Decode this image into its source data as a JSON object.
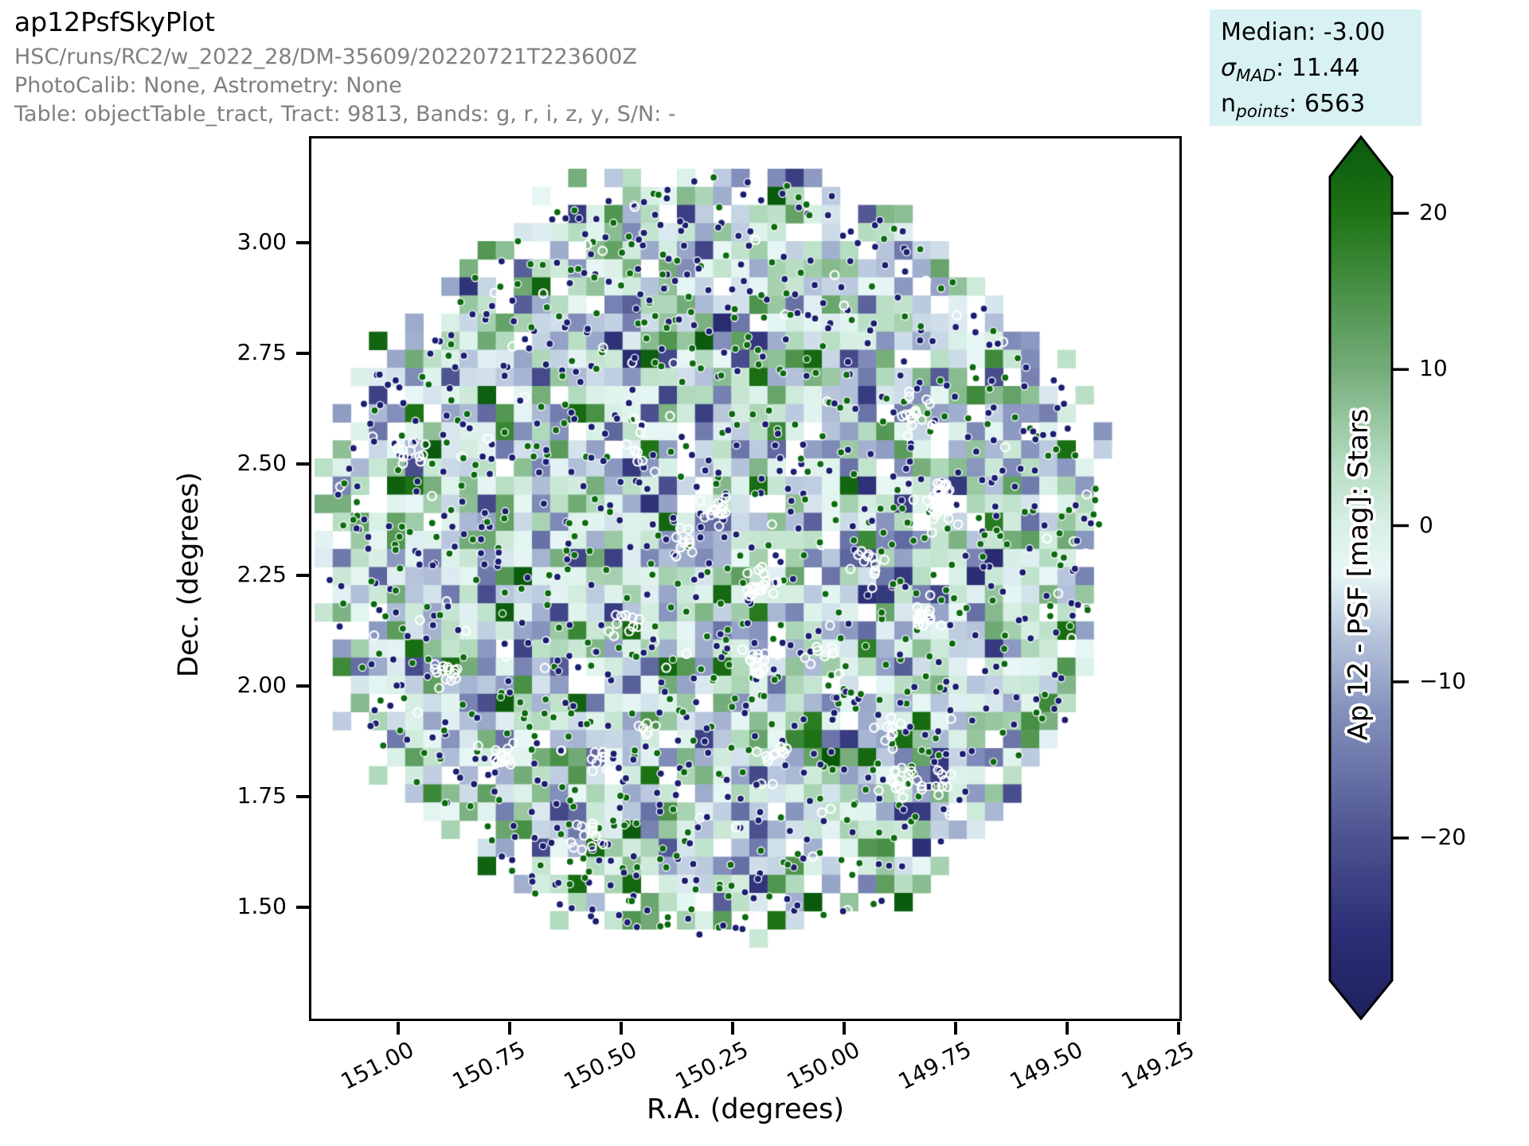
{
  "header": {
    "title": "ap12PsfSkyPlot",
    "run": "HSC/runs/RC2/w_2022_28/DM-35609/20220721T223600Z",
    "calib": "PhotoCalib: None, Astrometry: None",
    "table": "Table: objectTable_tract, Tract: 9813, Bands: g, r, i, z, y, S/N: -"
  },
  "stats": {
    "median": "Median: -3.00",
    "sigma": {
      "sym": "σ",
      "sub": "MAD",
      "rest": ": 11.44"
    },
    "npoints": {
      "sym": "n",
      "sub": "points",
      "rest": ": 6563"
    },
    "box_bg": "#d8f1f2"
  },
  "chart_data": {
    "type": "heatmap",
    "subtype": "sky-plot-binned-heatmap-with-scatter",
    "title": "ap12PsfSkyPlot",
    "xlabel": "R.A. (degrees)",
    "ylabel": "Dec. (degrees)",
    "x_ticks": [
      "151.00",
      "150.75",
      "150.50",
      "150.25",
      "150.00",
      "149.75",
      "149.50",
      "149.25"
    ],
    "x_tick_values": [
      151.0,
      150.75,
      150.5,
      150.25,
      150.0,
      149.75,
      149.5,
      149.25
    ],
    "y_ticks": [
      "3.00",
      "2.75",
      "2.50",
      "2.25",
      "2.00",
      "1.75",
      "1.50"
    ],
    "y_tick_values": [
      3.0,
      2.75,
      2.5,
      2.25,
      2.0,
      1.75,
      1.5
    ],
    "x_range_deg": [
      151.2,
      149.25
    ],
    "y_range_deg": [
      1.25,
      3.24
    ],
    "x_axis_inverted": true,
    "grid": false,
    "stats": {
      "median": -3.0,
      "sigma_mad": 11.44,
      "n_points": 6563
    },
    "colorbar": {
      "label": "Ap 12 - PSF [mag]: Stars",
      "ticks": [
        "20",
        "10",
        "0",
        "−10",
        "−20"
      ],
      "tick_values": [
        20,
        10,
        0,
        -10,
        -20
      ],
      "value_range": [
        -31,
        25
      ],
      "cmap_stops": [
        [
          -31,
          "#1f2260"
        ],
        [
          -26,
          "#2c2f77"
        ],
        [
          -20,
          "#4c5290"
        ],
        [
          -12,
          "#8390bb"
        ],
        [
          -7,
          "#b7c6dc"
        ],
        [
          -3,
          "#e7f7f6"
        ],
        [
          0,
          "#d9f0e6"
        ],
        [
          4,
          "#b4dcc0"
        ],
        [
          10,
          "#74ac79"
        ],
        [
          20,
          "#1d7414"
        ],
        [
          25,
          "#0a5a0e"
        ]
      ]
    },
    "render": {
      "seed": 20220721,
      "grid": {
        "cols": 44,
        "rows": 43,
        "cell": 22.75,
        "ox": 4,
        "oy": 38
      },
      "region": {
        "rho_core": 0.85,
        "rho_mid": 0.97,
        "rho_max": 1.04,
        "oct_clip": 1.4,
        "p_core": 0.94,
        "p_mid": 0.72,
        "p_edge": 0.33
      },
      "bin_value": {
        "mean": -2,
        "sigma": 8,
        "extreme_prob": 0.06,
        "extreme_lo": 20,
        "extreme_hi": 26
      },
      "points": {
        "n_single": 1150,
        "hollow_single_frac": 0.05,
        "clusters": 22,
        "cluster_min": 6,
        "cluster_max": 16,
        "cluster_spread": 11,
        "navy_frac": 0.57,
        "navy": "#1b1f71",
        "green": "#0b6b10",
        "radius": 4.6,
        "stroke": "#ffffff",
        "stroke_w": 1.4,
        "hollow_radius": 5.4,
        "hollow_stroke_w": 2.2,
        "rho_limit": 0.98
      }
    }
  }
}
